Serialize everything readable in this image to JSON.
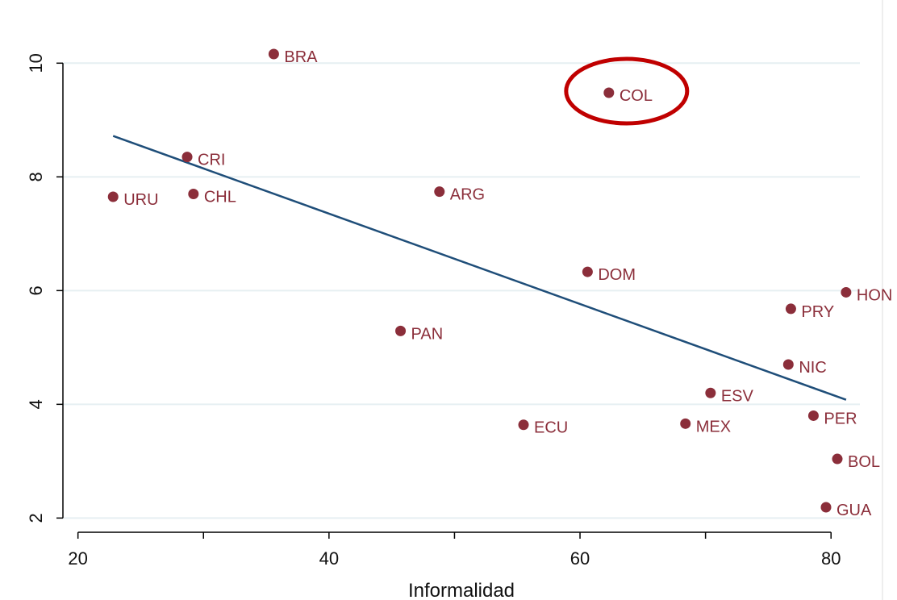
{
  "chart_data": {
    "type": "scatter",
    "title": "",
    "xlabel": "Informalidad",
    "ylabel": "",
    "xlim": [
      18.8,
      82.3
    ],
    "ylim": [
      1.75,
      10.6
    ],
    "x_ticks": [
      20,
      40,
      60,
      80
    ],
    "x_minor_ticks": [
      30,
      50,
      70
    ],
    "y_ticks": [
      2,
      4,
      6,
      8,
      10
    ],
    "grid": "horizontal",
    "series": [
      {
        "points": [
          {
            "label": "BRA",
            "x": 35.6,
            "y": 10.16
          },
          {
            "label": "COL",
            "x": 62.3,
            "y": 9.48
          },
          {
            "label": "CRI",
            "x": 28.7,
            "y": 8.35
          },
          {
            "label": "URU",
            "x": 22.8,
            "y": 7.65
          },
          {
            "label": "CHL",
            "x": 29.2,
            "y": 7.7
          },
          {
            "label": "ARG",
            "x": 48.8,
            "y": 7.74
          },
          {
            "label": "DOM",
            "x": 60.6,
            "y": 6.33
          },
          {
            "label": "HON",
            "x": 81.2,
            "y": 5.97
          },
          {
            "label": "PRY",
            "x": 76.8,
            "y": 5.68
          },
          {
            "label": "PAN",
            "x": 45.7,
            "y": 5.29
          },
          {
            "label": "NIC",
            "x": 76.6,
            "y": 4.7
          },
          {
            "label": "ESV",
            "x": 70.4,
            "y": 4.2
          },
          {
            "label": "ECU",
            "x": 55.5,
            "y": 3.64
          },
          {
            "label": "MEX",
            "x": 68.4,
            "y": 3.66
          },
          {
            "label": "PER",
            "x": 78.6,
            "y": 3.8
          },
          {
            "label": "BOL",
            "x": 80.5,
            "y": 3.04
          },
          {
            "label": "GUA",
            "x": 79.6,
            "y": 2.19
          }
        ]
      }
    ],
    "fit_line": {
      "x": [
        22.8,
        81.2
      ],
      "y": [
        8.72,
        4.08
      ]
    },
    "highlight": {
      "label": "COL"
    }
  },
  "colors": {
    "marker": "#8b2e3a",
    "label": "#8b2e3a",
    "fit_line": "#1f4e79",
    "highlight": "#c00000",
    "grid": "#e6eff2",
    "axis": "#000000"
  }
}
